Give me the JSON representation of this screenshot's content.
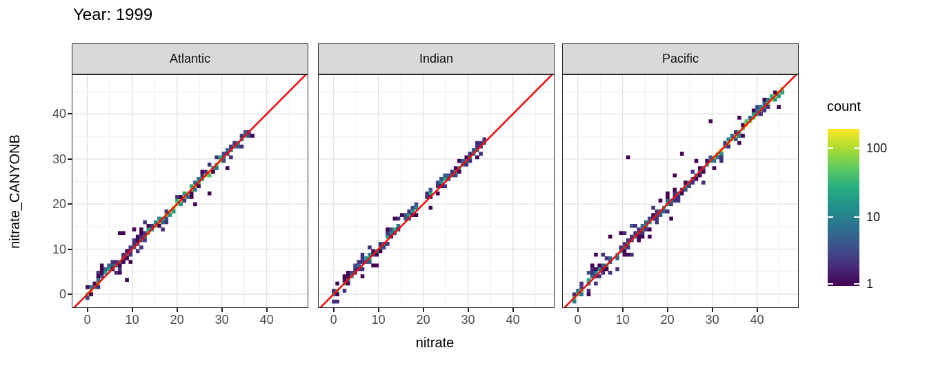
{
  "title": "Year: 1999",
  "axes": {
    "x_label": "nitrate",
    "y_label": "nitrate_CANYONB",
    "x_ticks": [
      0,
      10,
      20,
      30,
      40
    ],
    "y_ticks": [
      0,
      10,
      20,
      30,
      40
    ]
  },
  "legend": {
    "title": "count",
    "ticks": [
      100,
      10,
      1
    ],
    "scale": "log10",
    "min": 1,
    "max": 193
  },
  "colors": {
    "identity_line": "#ee0f0f",
    "strip_bg": "#d9d9d9",
    "panel_border": "#2a2a2a",
    "grid_major": "#e3e3e3",
    "grid_minor": "#efefef",
    "tick_label": "#4d4d4d",
    "viridis": [
      "#440154",
      "#472D7B",
      "#3B528B",
      "#2C728E",
      "#21918C",
      "#27AD81",
      "#5EC962",
      "#AADC32",
      "#FDE725"
    ]
  },
  "chart_data": {
    "type": "heatmap",
    "subtype": "bin2d-faceted",
    "title": "Year: 1999",
    "xlabel": "nitrate",
    "ylabel": "nitrate_CANYONB",
    "xlim": [
      -3.5,
      49.3
    ],
    "ylim": [
      -3.1,
      48.8
    ],
    "bin_size": 0.8,
    "identity_line": "y = x",
    "grid": "on",
    "legend_position": "right",
    "facets": [
      {
        "label": "Atlantic",
        "data_range": [
          0,
          37
        ],
        "seed": 42,
        "segments": [
          {
            "from": -0.4,
            "to": 2.0,
            "spread": 1.1,
            "hot": true,
            "bias": 0.5
          },
          {
            "from": 2.0,
            "to": 6.5,
            "spread": 1.5,
            "bias": 0.5
          },
          {
            "from": 6.5,
            "to": 13.5,
            "spread": 1.9,
            "bias": 0.2
          },
          {
            "from": 13.5,
            "to": 24.0,
            "spread": 1.1,
            "hot": true
          },
          {
            "from": 24.0,
            "to": 30.5,
            "spread": 1.2,
            "hot": true,
            "bias": 0.2
          },
          {
            "from": 30.5,
            "to": 36.8,
            "spread": 1.5,
            "bias": 0.3
          }
        ],
        "outliers": [
          [
            7.4,
            13.8
          ],
          [
            8.2,
            13.4
          ],
          [
            8.6,
            2.9
          ],
          [
            27.3,
            22.5
          ],
          [
            24.1,
            20.3
          ],
          [
            3.4,
            6.1
          ],
          [
            10.6,
            14.2
          ],
          [
            36.6,
            35.2
          ],
          [
            30.9,
            28.2
          ]
        ]
      },
      {
        "label": "Indian",
        "data_range": [
          0,
          33.5
        ],
        "seed": 7,
        "segments": [
          {
            "from": -0.4,
            "to": 1.2,
            "spread": 0.9,
            "hot": true
          },
          {
            "from": 1.2,
            "to": 4.5,
            "spread": 1.2,
            "density": 0.85
          },
          {
            "from": 4.5,
            "to": 8.0,
            "spread": 1.6,
            "bias": 0.8
          },
          {
            "from": 8.0,
            "to": 12.0,
            "spread": 1.2,
            "density": 0.8
          },
          {
            "from": 12.0,
            "to": 19.0,
            "spread": 1.4,
            "bias": 0.8,
            "density": 0.95
          },
          {
            "from": 19.0,
            "to": 26.0,
            "spread": 1.2,
            "bias": 0.6,
            "density": 0.9
          },
          {
            "from": 26.0,
            "to": 33.6,
            "spread": 1.0,
            "bias": 0.3,
            "density": 0.95
          }
        ],
        "outliers": [
          [
            9.3,
            6.4
          ],
          [
            13.9,
            16.9
          ],
          [
            15.4,
            17.7
          ],
          [
            16.6,
            18.3
          ],
          [
            21.7,
            19.2
          ],
          [
            6.2,
            3.9
          ],
          [
            23.3,
            24.9
          ],
          [
            2.6,
            1.0
          ]
        ]
      },
      {
        "label": "Pacific",
        "data_range": [
          0,
          46
        ],
        "seed": 19,
        "segments": [
          {
            "from": -0.6,
            "to": 1.2,
            "spread": 1.0,
            "hot": true
          },
          {
            "from": 1.2,
            "to": 6.0,
            "spread": 2.2,
            "bias": 0.5
          },
          {
            "from": 6.0,
            "to": 14.0,
            "spread": 2.4,
            "bias": 0.6
          },
          {
            "from": 14.0,
            "to": 22.0,
            "spread": 1.8,
            "bias": 0.2
          },
          {
            "from": 22.0,
            "to": 30.0,
            "spread": 1.5,
            "bias": 0.2
          },
          {
            "from": 30.0,
            "to": 40.0,
            "spread": 1.3,
            "hot": true
          },
          {
            "from": 40.0,
            "to": 46.2,
            "spread": 1.1,
            "hot": true
          }
        ],
        "outliers": [
          [
            29.6,
            38.1
          ],
          [
            11.1,
            30.4
          ],
          [
            23.1,
            31.0
          ],
          [
            21.6,
            26.6
          ],
          [
            4.1,
            8.9
          ],
          [
            2.9,
            6.6
          ],
          [
            44.6,
            41.9
          ],
          [
            7.2,
            12.4
          ],
          [
            16.2,
            12.9
          ],
          [
            36.2,
            33.4
          ]
        ]
      }
    ]
  }
}
